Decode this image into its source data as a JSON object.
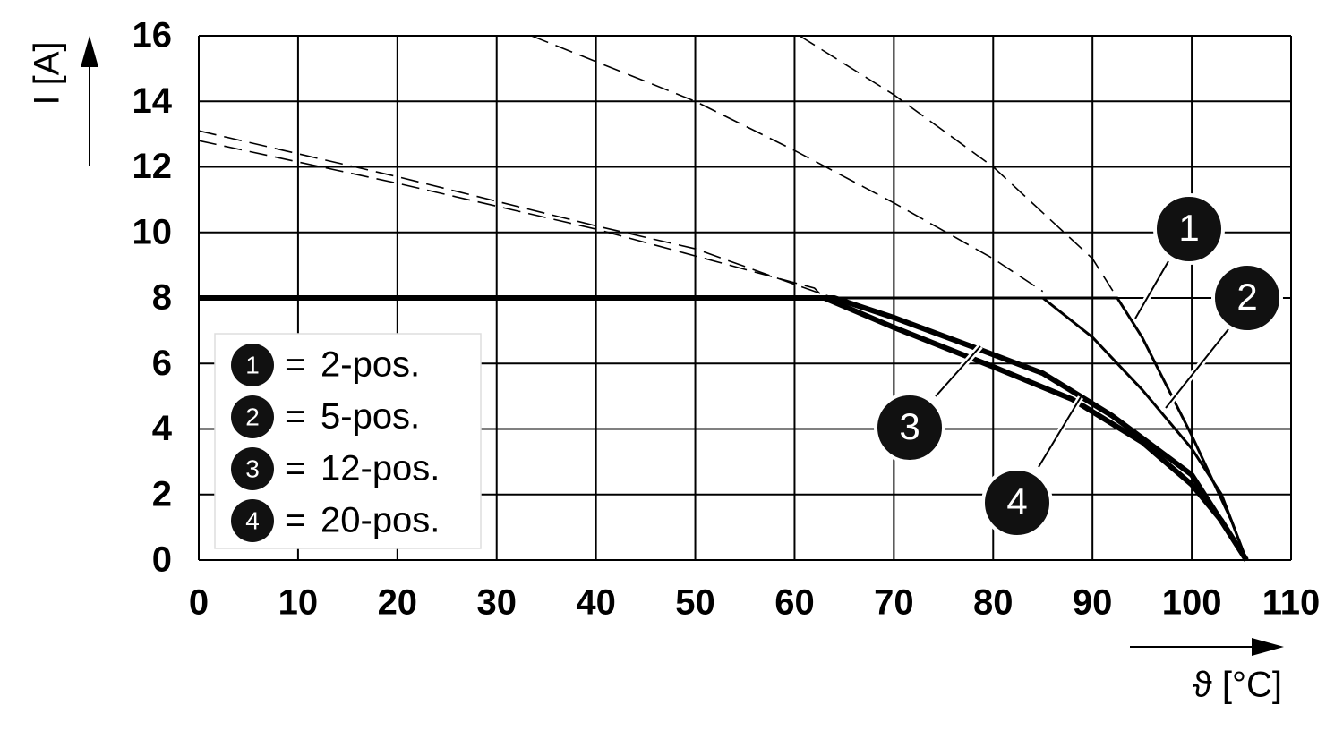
{
  "chart_data": {
    "type": "line",
    "x_label": "ϑ [°C]",
    "y_label": "I [A]",
    "xlim": [
      0,
      110
    ],
    "ylim": [
      0,
      16
    ],
    "xticks": [
      0,
      10,
      20,
      30,
      40,
      50,
      60,
      70,
      80,
      90,
      100,
      110
    ],
    "yticks": [
      0,
      2,
      4,
      6,
      8,
      10,
      12,
      14,
      16
    ],
    "grid": true,
    "legend_separator": "=",
    "series": [
      {
        "name": "2-pos.",
        "marker": "1",
        "color": "#000000",
        "width": 3,
        "x": [
          0,
          92.5,
          95,
          98,
          100,
          102,
          104,
          105.5
        ],
        "values": [
          8,
          8,
          6.8,
          5,
          3.8,
          2.5,
          1.2,
          0
        ],
        "dashed": {
          "x": [
            60.5,
            70,
            80,
            90,
            92.5
          ],
          "values": [
            16,
            14.2,
            12,
            9.2,
            8
          ]
        }
      },
      {
        "name": "5-pos.",
        "marker": "2",
        "color": "#000000",
        "width": 3,
        "x": [
          0,
          85,
          90,
          95,
          100,
          103,
          105.5
        ],
        "values": [
          8,
          8,
          6.8,
          5.2,
          3.4,
          2,
          0
        ],
        "dashed": {
          "x": [
            33.5,
            50,
            60,
            70,
            80,
            85
          ],
          "values": [
            16,
            14,
            12.5,
            10.9,
            9.2,
            8.2
          ]
        }
      },
      {
        "name": "12-pos.",
        "marker": "3",
        "color": "#000000",
        "width": 6,
        "x": [
          0,
          64,
          70,
          78,
          85,
          92,
          100,
          105.5
        ],
        "values": [
          8,
          8,
          7.4,
          6.5,
          5.7,
          4.4,
          2.6,
          0
        ],
        "dashed": {
          "x": [
            0,
            20,
            40,
            50,
            62,
            64
          ],
          "values": [
            13.1,
            11.7,
            10.2,
            9.5,
            8.2,
            8
          ]
        }
      },
      {
        "name": "20-pos.",
        "marker": "4",
        "color": "#000000",
        "width": 6,
        "x": [
          0,
          63,
          70,
          80,
          88,
          95,
          100,
          103,
          105.5
        ],
        "values": [
          8,
          8,
          7.1,
          5.9,
          4.9,
          3.6,
          2.3,
          1.2,
          0
        ],
        "dashed": {
          "x": [
            0,
            20,
            40,
            62,
            63
          ],
          "values": [
            12.8,
            11.5,
            10.1,
            8.3,
            8
          ]
        }
      }
    ]
  }
}
